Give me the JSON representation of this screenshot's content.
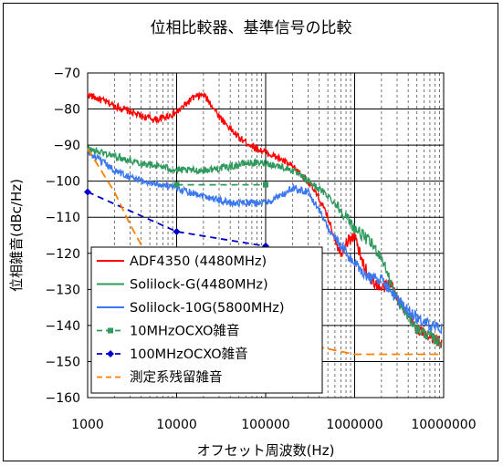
{
  "chart_data": {
    "type": "line",
    "title": "位相比較器、基準信号の比較",
    "xlabel": "オフセット周波数(Hz)",
    "ylabel": "位相雑音(dBc/Hz)",
    "x_scale": "log",
    "xlim": [
      1000,
      10000000
    ],
    "ylim": [
      -160,
      -70
    ],
    "x_ticks": [
      "1000",
      "10000",
      "100000",
      "1000000",
      "10000000"
    ],
    "y_ticks": [
      "-70",
      "-80",
      "-90",
      "-100",
      "-110",
      "-120",
      "-130",
      "-140",
      "-150",
      "-160"
    ],
    "grid": "major-and-minor",
    "legend_position": "lower-left",
    "series": [
      {
        "name": "ADF4350 (4480MHz)",
        "color": "#ff0000",
        "style": "solid",
        "marker": "none",
        "x": [
          1000,
          2000,
          4000,
          6000,
          10000,
          15000,
          20000,
          25000,
          30000,
          50000,
          80000,
          100000,
          150000,
          200000,
          300000,
          400000,
          500000,
          600000,
          700000,
          800000,
          1000000,
          1200000,
          1500000,
          2000000,
          2500000,
          3000000,
          4000000,
          5000000,
          7000000,
          9500000
        ],
        "y": [
          -76,
          -79,
          -82,
          -83,
          -81,
          -77,
          -76,
          -79,
          -82,
          -88,
          -91,
          -92,
          -94,
          -96,
          -100,
          -105,
          -110,
          -116,
          -120,
          -117,
          -115,
          -122,
          -127,
          -130,
          -128,
          -132,
          -138,
          -141,
          -143,
          -145
        ]
      },
      {
        "name": "Solilock-G(4480MHz)",
        "color": "#2e9a5e",
        "style": "solid",
        "marker": "none",
        "x": [
          1000,
          2000,
          4000,
          7000,
          10000,
          20000,
          40000,
          60000,
          100000,
          150000,
          200000,
          300000,
          500000,
          700000,
          1000000,
          1500000,
          2000000,
          3000000,
          5000000,
          7000000,
          9500000
        ],
        "y": [
          -91,
          -93,
          -95,
          -96,
          -97,
          -97,
          -96,
          -95,
          -95,
          -96,
          -97,
          -100,
          -104,
          -108,
          -113,
          -117,
          -121,
          -133,
          -141,
          -143,
          -145
        ]
      },
      {
        "name": "Solilock-10G(5800MHz)",
        "color": "#3a78f2",
        "style": "solid",
        "marker": "none",
        "x": [
          1000,
          2000,
          4000,
          7000,
          10000,
          20000,
          40000,
          60000,
          100000,
          150000,
          200000,
          300000,
          400000,
          500000,
          700000,
          1000000,
          1500000,
          2000000,
          3000000,
          5000000,
          7000000,
          9500000
        ],
        "y": [
          -92,
          -97,
          -100,
          -101,
          -102,
          -104,
          -106,
          -106,
          -106,
          -104,
          -102,
          -103,
          -108,
          -113,
          -118,
          -123,
          -127,
          -127,
          -133,
          -138,
          -140,
          -141
        ]
      },
      {
        "name": "10MHzOCXO雑音",
        "color": "#2e9a5e",
        "style": "dash",
        "marker": "square",
        "x": [
          10000,
          100000
        ],
        "y": [
          -101,
          -101
        ]
      },
      {
        "name": "100MHzOCXO雑音",
        "color": "#0000cc",
        "style": "dash",
        "marker": "diamond",
        "x": [
          1000,
          10000,
          100000
        ],
        "y": [
          -103,
          -114,
          -118
        ]
      },
      {
        "name": "測定系残留雑音",
        "color": "#ff8000",
        "style": "dash",
        "marker": "none",
        "x": [
          1000,
          2000,
          3000,
          5000,
          10000,
          20000,
          40000,
          100000,
          200000,
          400000,
          1000000,
          3000000,
          10000000
        ],
        "y": [
          -91,
          -103,
          -112,
          -122,
          -131,
          -134,
          -137,
          -140,
          -143,
          -146,
          -148,
          -148,
          -148
        ]
      }
    ],
    "legend_labels": [
      "ADF4350 (4480MHz)",
      "Solilock-G(4480MHz)",
      "Solilock-10G(5800MHz)",
      "10MHzOCXO雑音",
      "100MHzOCXO雑音",
      "測定系残留雑音"
    ]
  }
}
